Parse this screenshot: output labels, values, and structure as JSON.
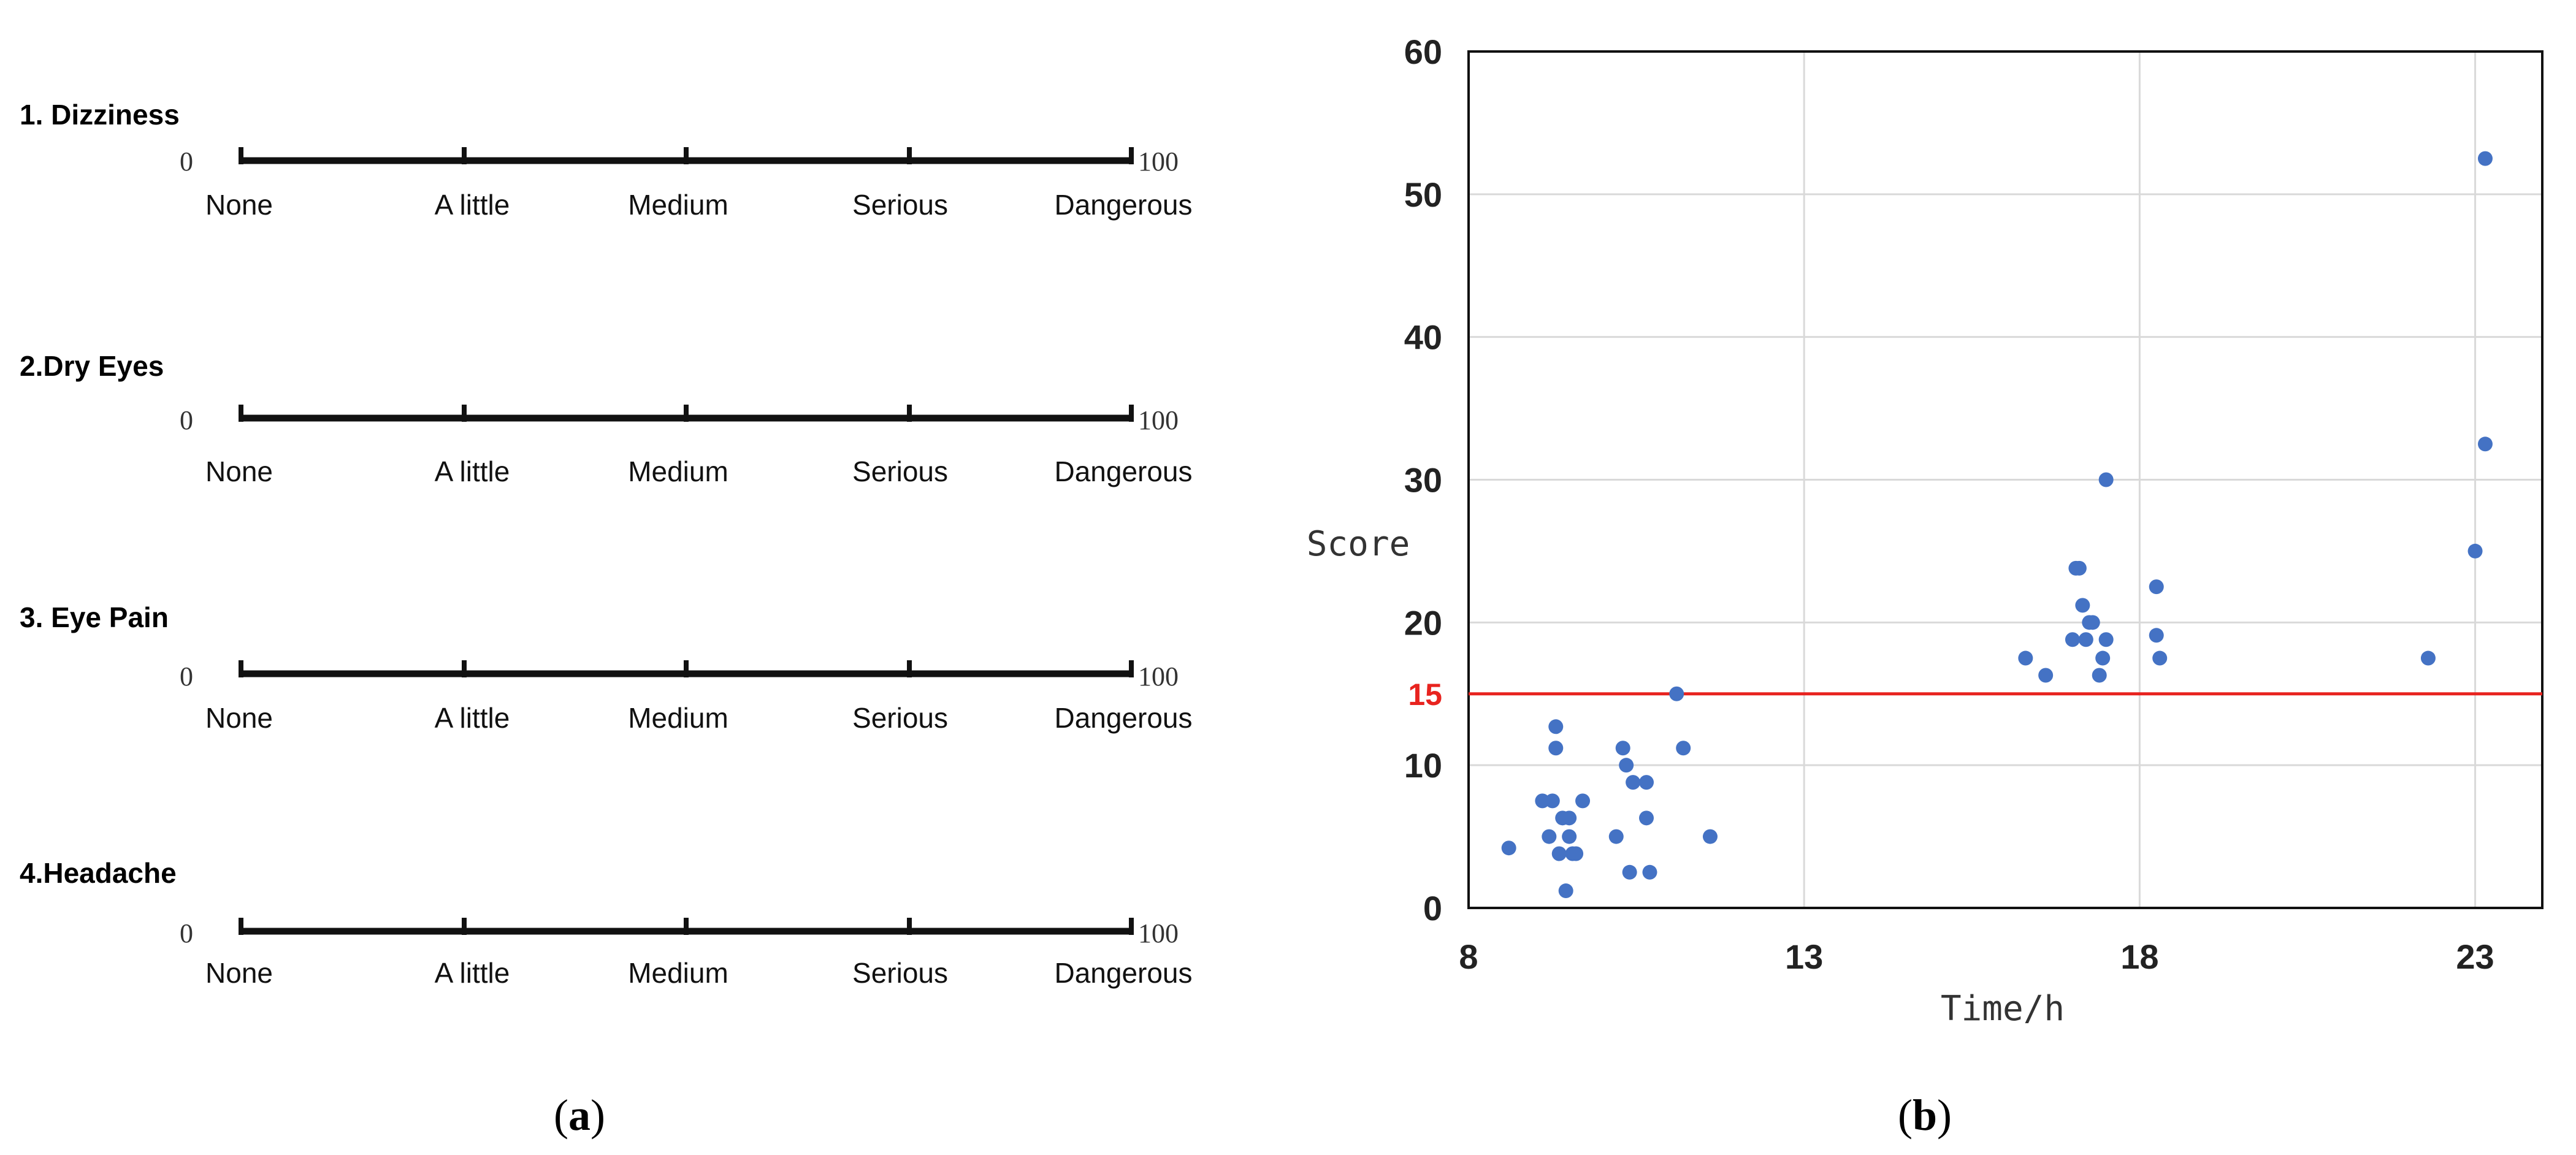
{
  "panel_a": {
    "label": "a",
    "scales": [
      {
        "title": "1. Dizziness",
        "min_label": "0",
        "max_label": "100",
        "levels": [
          "None",
          "A little",
          "Medium",
          "Serious",
          "Dangerous"
        ]
      },
      {
        "title": "2.Dry Eyes",
        "min_label": "0",
        "max_label": "100",
        "levels": [
          "None",
          "A little",
          "Medium",
          "Serious",
          "Dangerous"
        ]
      },
      {
        "title": "3. Eye Pain",
        "min_label": "0",
        "max_label": "100",
        "levels": [
          "None",
          "A little",
          "Medium",
          "Serious",
          "Dangerous"
        ]
      },
      {
        "title": "4.Headache",
        "min_label": "0",
        "max_label": "100",
        "levels": [
          "None",
          "A little",
          "Medium",
          "Serious",
          "Dangerous"
        ]
      }
    ]
  },
  "panel_b": {
    "label": "b"
  },
  "chart_data": {
    "type": "scatter",
    "title": "",
    "xlabel": "Time/h",
    "ylabel": "Score",
    "xlim": [
      8,
      24
    ],
    "ylim": [
      0,
      60
    ],
    "xticks": [
      8,
      13,
      18,
      23
    ],
    "yticks": [
      0,
      10,
      20,
      30,
      40,
      50,
      60
    ],
    "grid": true,
    "legend": "none",
    "point_color": "#4472C4",
    "threshold": {
      "value": 15,
      "label": "15",
      "color": "#E8231F"
    },
    "series": [
      {
        "name": "Score",
        "points": [
          [
            8.6,
            4.2
          ],
          [
            9.1,
            7.5
          ],
          [
            9.2,
            5.0
          ],
          [
            9.25,
            7.5
          ],
          [
            9.3,
            11.2
          ],
          [
            9.3,
            12.7
          ],
          [
            9.35,
            3.8
          ],
          [
            9.4,
            6.3
          ],
          [
            9.45,
            1.2
          ],
          [
            9.5,
            5.0
          ],
          [
            9.5,
            6.3
          ],
          [
            9.55,
            3.8
          ],
          [
            9.6,
            3.8
          ],
          [
            9.7,
            7.5
          ],
          [
            10.2,
            5.0
          ],
          [
            10.3,
            11.2
          ],
          [
            10.35,
            10.0
          ],
          [
            10.4,
            2.5
          ],
          [
            10.45,
            8.8
          ],
          [
            10.65,
            6.3
          ],
          [
            10.65,
            8.8
          ],
          [
            10.7,
            2.5
          ],
          [
            11.1,
            15.0
          ],
          [
            11.2,
            11.2
          ],
          [
            11.6,
            5.0
          ],
          [
            16.3,
            17.5
          ],
          [
            16.6,
            16.3
          ],
          [
            17.0,
            18.8
          ],
          [
            17.05,
            23.8
          ],
          [
            17.1,
            23.8
          ],
          [
            17.15,
            21.2
          ],
          [
            17.2,
            18.8
          ],
          [
            17.25,
            20.0
          ],
          [
            17.3,
            20.0
          ],
          [
            17.4,
            16.3
          ],
          [
            17.45,
            17.5
          ],
          [
            17.5,
            18.8
          ],
          [
            17.5,
            30.0
          ],
          [
            18.25,
            22.5
          ],
          [
            18.25,
            19.1
          ],
          [
            18.3,
            17.5
          ],
          [
            22.3,
            17.5
          ],
          [
            23.0,
            25.0
          ],
          [
            23.15,
            32.5
          ],
          [
            23.15,
            52.5
          ]
        ]
      }
    ]
  }
}
